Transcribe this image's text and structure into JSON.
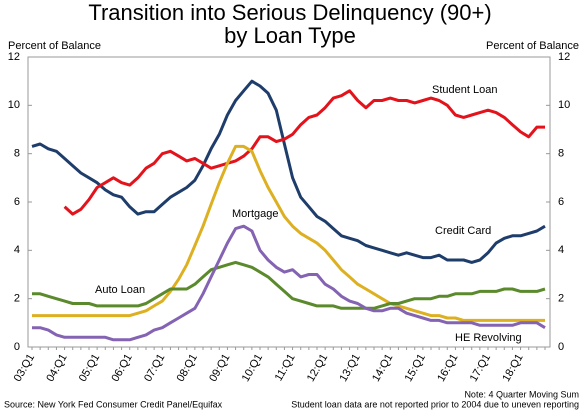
{
  "chart_data": {
    "type": "line",
    "title": [
      "Transition into Serious Delinquency (90+)",
      "by Loan Type"
    ],
    "y_label": "Percent of Balance",
    "y2_label": "Percent of Balance",
    "categories": [
      "03:Q1",
      null,
      null,
      null,
      "04:Q1",
      null,
      null,
      null,
      "05:Q1",
      null,
      null,
      null,
      "06:Q1",
      null,
      null,
      null,
      "07:Q1",
      null,
      null,
      null,
      "08:Q1",
      null,
      null,
      null,
      "09:Q1",
      null,
      null,
      null,
      "10:Q1",
      null,
      null,
      null,
      "11:Q1",
      null,
      null,
      null,
      "12:Q1",
      null,
      null,
      null,
      "13:Q1",
      null,
      null,
      null,
      "14:Q1",
      null,
      null,
      null,
      "15:Q1",
      null,
      null,
      null,
      "16:Q1",
      null,
      null,
      null,
      "17:Q1",
      null,
      null,
      null,
      "18:Q1",
      null,
      null,
      null
    ],
    "series": [
      {
        "name": "Credit Card",
        "color": "#1f3d6b",
        "values": [
          8.3,
          8.4,
          8.2,
          8.1,
          7.8,
          7.5,
          7.2,
          7.0,
          6.8,
          6.5,
          6.3,
          6.2,
          5.8,
          5.5,
          5.6,
          5.6,
          5.9,
          6.2,
          6.4,
          6.6,
          6.9,
          7.5,
          8.2,
          8.8,
          9.6,
          10.2,
          10.6,
          11.0,
          10.8,
          10.5,
          9.8,
          8.4,
          7.0,
          6.2,
          5.8,
          5.4,
          5.2,
          4.9,
          4.6,
          4.5,
          4.4,
          4.2,
          4.1,
          4.0,
          3.9,
          3.8,
          3.9,
          3.8,
          3.7,
          3.7,
          3.8,
          3.6,
          3.6,
          3.6,
          3.5,
          3.6,
          3.9,
          4.3,
          4.5,
          4.6,
          4.6,
          4.7,
          4.8,
          5.0
        ]
      },
      {
        "name": "Student Loan",
        "color": "#e3121b",
        "values": [
          null,
          null,
          null,
          null,
          5.8,
          5.5,
          5.7,
          6.1,
          6.6,
          6.8,
          7.0,
          6.8,
          6.7,
          7.0,
          7.4,
          7.6,
          8.0,
          8.1,
          7.9,
          7.7,
          7.8,
          7.6,
          7.4,
          7.5,
          7.6,
          7.7,
          7.9,
          8.2,
          8.7,
          8.7,
          8.5,
          8.6,
          8.8,
          9.2,
          9.5,
          9.6,
          9.9,
          10.3,
          10.4,
          10.6,
          10.2,
          9.9,
          10.2,
          10.2,
          10.3,
          10.2,
          10.2,
          10.1,
          10.2,
          10.3,
          10.2,
          10.0,
          9.6,
          9.5,
          9.6,
          9.7,
          9.8,
          9.7,
          9.5,
          9.2,
          8.9,
          8.7,
          9.1,
          9.1
        ]
      },
      {
        "name": "Mortgage",
        "color": "#ddb022",
        "values": [
          1.3,
          1.3,
          1.3,
          1.3,
          1.3,
          1.3,
          1.3,
          1.3,
          1.3,
          1.3,
          1.3,
          1.3,
          1.3,
          1.4,
          1.5,
          1.7,
          1.9,
          2.3,
          2.8,
          3.4,
          4.2,
          5.0,
          5.9,
          6.8,
          7.6,
          8.3,
          8.3,
          8.1,
          7.3,
          6.6,
          6.0,
          5.4,
          5.0,
          4.7,
          4.5,
          4.3,
          4.0,
          3.6,
          3.2,
          2.9,
          2.6,
          2.4,
          2.2,
          2.0,
          1.8,
          1.7,
          1.6,
          1.5,
          1.4,
          1.3,
          1.3,
          1.2,
          1.2,
          1.1,
          1.1,
          1.1,
          1.1,
          1.1,
          1.1,
          1.1,
          1.1,
          1.1,
          1.1,
          1.1
        ]
      },
      {
        "name": "Auto Loan",
        "color": "#5b8a2d",
        "values": [
          2.2,
          2.2,
          2.1,
          2.0,
          1.9,
          1.8,
          1.8,
          1.8,
          1.7,
          1.7,
          1.7,
          1.7,
          1.7,
          1.7,
          1.8,
          2.0,
          2.2,
          2.4,
          2.4,
          2.4,
          2.6,
          2.9,
          3.2,
          3.3,
          3.4,
          3.5,
          3.4,
          3.3,
          3.1,
          2.9,
          2.6,
          2.3,
          2.0,
          1.9,
          1.8,
          1.7,
          1.7,
          1.7,
          1.6,
          1.6,
          1.6,
          1.6,
          1.6,
          1.7,
          1.8,
          1.8,
          1.9,
          2.0,
          2.0,
          2.0,
          2.1,
          2.1,
          2.2,
          2.2,
          2.2,
          2.3,
          2.3,
          2.3,
          2.4,
          2.4,
          2.3,
          2.3,
          2.3,
          2.4
        ]
      },
      {
        "name": "HE Revolving",
        "color": "#8463b3",
        "values": [
          0.8,
          0.8,
          0.7,
          0.5,
          0.4,
          0.4,
          0.4,
          0.4,
          0.4,
          0.4,
          0.3,
          0.3,
          0.3,
          0.4,
          0.5,
          0.7,
          0.8,
          1.0,
          1.2,
          1.4,
          1.6,
          2.2,
          2.9,
          3.6,
          4.3,
          4.9,
          5.0,
          4.8,
          4.0,
          3.6,
          3.3,
          3.1,
          3.2,
          2.9,
          3.0,
          3.0,
          2.6,
          2.4,
          2.1,
          1.9,
          1.8,
          1.6,
          1.5,
          1.5,
          1.6,
          1.6,
          1.4,
          1.3,
          1.2,
          1.1,
          1.1,
          1.0,
          1.0,
          1.0,
          1.0,
          0.9,
          0.9,
          0.9,
          0.9,
          0.9,
          1.0,
          1.0,
          1.0,
          0.8
        ]
      }
    ],
    "ylim": [
      0,
      12
    ],
    "yticks": [
      0,
      2,
      4,
      6,
      8,
      10,
      12
    ],
    "y2lim": [
      0,
      12
    ],
    "y2ticks": [
      0,
      2,
      4,
      6,
      8,
      10,
      12
    ],
    "notes": [
      "Note: 4 Quarter Moving Sum",
      "Source: New York Fed Consumer Credit Panel/Equifax",
      "Student loan data are not reported prior to 2004 due to uneven reporting"
    ]
  }
}
